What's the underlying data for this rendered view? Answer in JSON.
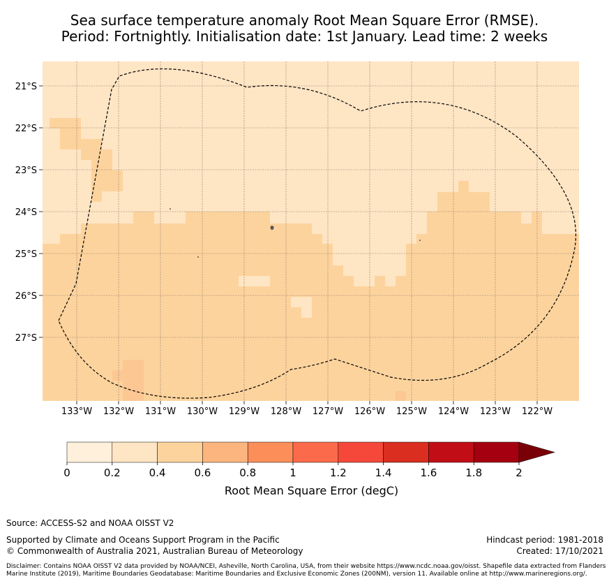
{
  "title": {
    "line1": "Sea surface temperature anomaly Root Mean Square Error (RMSE).",
    "line2": "Period: Fortnightly. Initialisation date: 1st January. Lead time: 2 weeks"
  },
  "map": {
    "lat_ticks": [
      "21°S",
      "22°S",
      "23°S",
      "24°S",
      "25°S",
      "26°S",
      "27°S"
    ],
    "lon_ticks": [
      "133°W",
      "132°W",
      "131°W",
      "130°W",
      "129°W",
      "128°W",
      "127°W",
      "126°W",
      "125°W",
      "124°W",
      "123°W",
      "122°W"
    ],
    "lon_range": [
      -133.8,
      -121.0
    ],
    "lat_range": [
      -28.5,
      -20.6
    ],
    "colors": {
      "band_0_2_0_4": "#fee5c4",
      "band_0_4_0_6": "#fdd39d"
    }
  },
  "colorbar": {
    "label": "Root Mean Square Error (degC)",
    "ticks": [
      "0",
      "0.2",
      "0.4",
      "0.6",
      "0.8",
      "1",
      "1.2",
      "1.4",
      "1.6",
      "1.8",
      "2"
    ],
    "colors": [
      "#fff0dc",
      "#fee5c4",
      "#fdd39d",
      "#fdb57f",
      "#fc8f59",
      "#fb6b4b",
      "#f5483a",
      "#d92e20",
      "#c10e16",
      "#a50010"
    ],
    "extend_color": "#7a0008"
  },
  "footer": {
    "source": "Source: ACCESS-S2 and NOAA OISST V2",
    "support": "Supported by Climate and Oceans Support Program in the Pacific",
    "copyright": "© Commonwealth of Australia 2021, Australian Bureau of Meteorology",
    "hindcast": "Hindcast period: 1981-2018",
    "created": "Created: 17/10/2021",
    "disclaimer": "Disclaimer: Contains NOAA OISST V2 data provided by NOAA/NCEI, Asheville, North Carolina, USA, from their website https://www.ncdc.noaa.gov/oisst. Shapefile data extracted from Flanders Marine Institute (2019), Maritime Boundaries Geodatabase: Maritime Boundaries and Exclusive Economic Zones (200NM), version 11. Available online at http://www.marineregions.org/."
  }
}
